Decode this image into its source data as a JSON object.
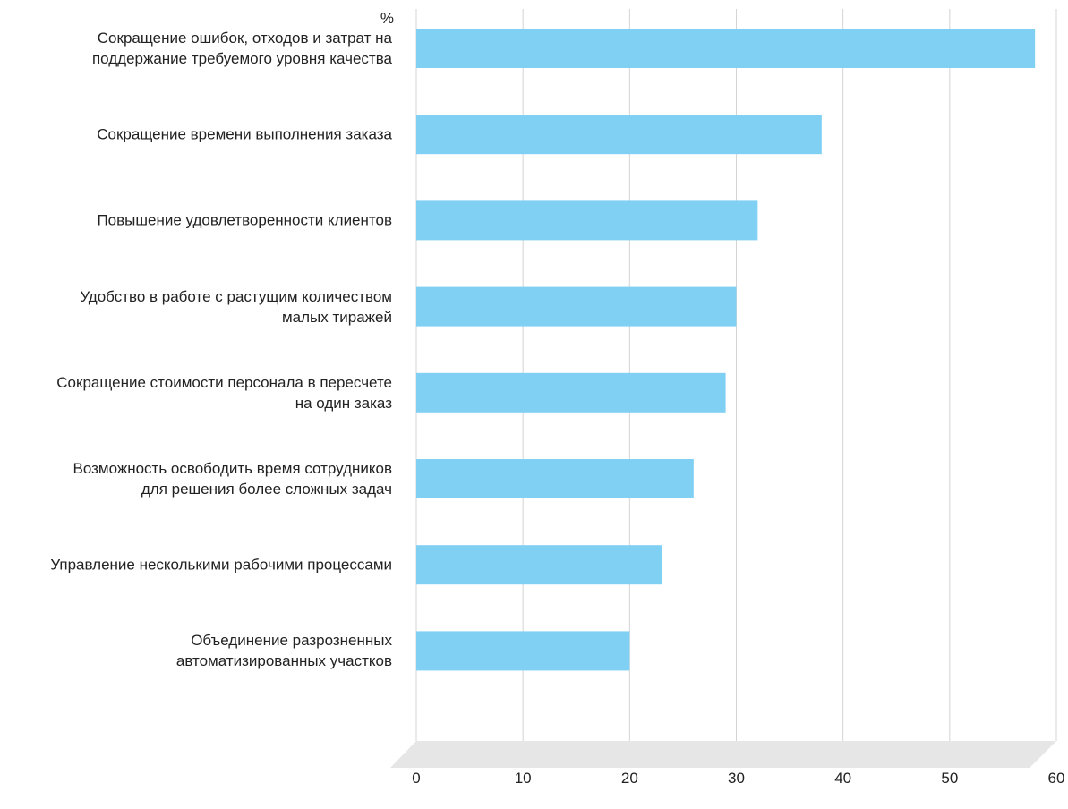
{
  "chart_data": {
    "type": "bar",
    "orientation": "horizontal",
    "unit_label": "%",
    "categories": [
      "Сокращение ошибок, отходов и затрат на\nподдержание требуемого уровня качества",
      "Сокращение времени выполнения заказа",
      "Повышение удовлетворенности клиентов",
      "Удобство в работе с растущим количеством\nмалых тиражей",
      "Сокращение стоимости персонала в пересчете\nна один заказ",
      "Возможность освободить время сотрудников\nдля решения более сложных задач",
      "Управление несколькими рабочими процессами",
      "Объединение разрозненных\nавтоматизированных участков"
    ],
    "values": [
      58,
      38,
      32,
      30,
      29,
      26,
      23,
      20
    ],
    "color": "#80d0f3",
    "xlim": [
      0,
      60
    ],
    "xticks": [
      0,
      10,
      20,
      30,
      40,
      50,
      60
    ],
    "grid": true
  }
}
